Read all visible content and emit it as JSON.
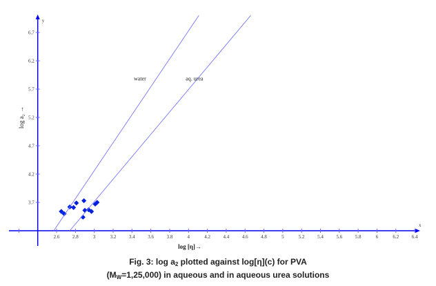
{
  "chart_data": {
    "type": "scatter",
    "title": "",
    "xlabel": "log [η]→",
    "ylabel": "log a₂ →",
    "x_axis_letter": "x",
    "y_axis_letter": "y",
    "xlim": [
      2.2,
      6.45
    ],
    "ylim": [
      3.2,
      7.27
    ],
    "axis_crossing": {
      "x": 2.4,
      "y": 3.2
    },
    "xticks": [
      2.2,
      2.6,
      2.8,
      3.0,
      3.2,
      3.4,
      3.6,
      3.8,
      4.0,
      4.2,
      4.4,
      4.6,
      4.8,
      5.0,
      5.2,
      5.4,
      5.6,
      5.8,
      6.0,
      6.2,
      6.4
    ],
    "xtick_labels": [
      "",
      "2.6",
      "2.8",
      "3",
      "3.2",
      "3.4",
      "3.6",
      "3.8",
      "4",
      "4.2",
      "4.4",
      "4.6",
      "4.8",
      "5",
      "5.2",
      "5.4",
      "5.6",
      "5.8",
      "6",
      "6.2",
      "6.4"
    ],
    "yticks": [
      3.7,
      4.2,
      4.7,
      5.2,
      5.7,
      6.2,
      6.7
    ],
    "ytick_labels": [
      "3.7",
      "4.2",
      "4.7",
      "5.2",
      "5.7",
      "6.2",
      "6.7"
    ],
    "grid": false,
    "series": [
      {
        "name": "points",
        "kind": "scatter",
        "x": [
          2.65,
          2.68,
          2.74,
          2.78,
          2.81,
          2.89,
          2.88,
          2.9,
          2.94,
          2.97,
          3.01,
          3.03
        ],
        "y": [
          3.54,
          3.5,
          3.62,
          3.61,
          3.69,
          3.73,
          3.44,
          3.56,
          3.57,
          3.54,
          3.67,
          3.7
        ]
      },
      {
        "name": "water",
        "kind": "line",
        "x": [
          2.57,
          4.11
        ],
        "y": [
          3.2,
          7.0
        ]
      },
      {
        "name": "aq. urea",
        "kind": "line",
        "x": [
          2.74,
          4.66
        ],
        "y": [
          3.2,
          7.0
        ]
      }
    ],
    "annotations": [
      {
        "text": "water",
        "x": 3.42,
        "y": 5.85
      },
      {
        "text": "aq. urea",
        "x": 3.97,
        "y": 5.85
      }
    ],
    "colors": {
      "axis": "#0000ee",
      "points": "#0022dd",
      "lines": "#7777ff",
      "tick": "#6666ff"
    }
  },
  "caption": {
    "line1_prefix": "Fig. 3: log a",
    "line1_sub": "2",
    "line1_suffix": " plotted against log[η](c) for PVA",
    "line2_prefix": "(M",
    "line2_sub": "W",
    "line2_suffix": "=1,25,000) in aqueous and in aqueous urea solutions"
  }
}
